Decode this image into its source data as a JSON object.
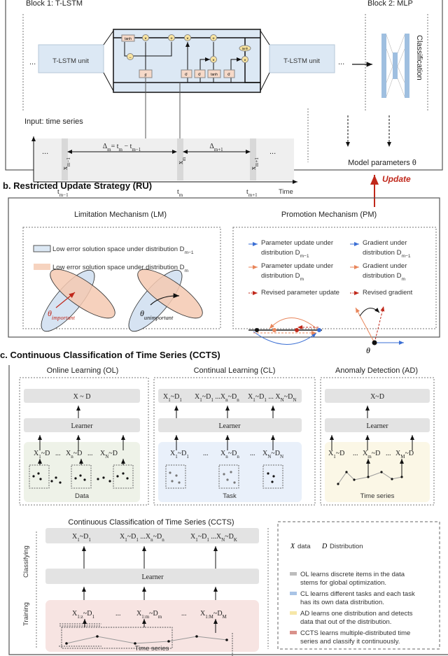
{
  "section_a": {
    "block1_title": "Block 1: T-LSTM",
    "block2_title": "Block 2: MLP",
    "unit_label_left": "T-LSTM unit",
    "unit_label_right": "T-LSTM unit",
    "ellipsis": "...",
    "classification": "Classification",
    "gates": {
      "tanh": "tanh",
      "sigma": "σ",
      "g": "g",
      "times": "×",
      "plus": "+",
      "minus": "−"
    },
    "input_title": "Input: time series",
    "delta_m": "Δ_{m}= t_{m} − t_{m−1}",
    "delta_m1": "Δ_{m+1}",
    "x_prev": "x_{m−1}",
    "x_cur": "x_{m}",
    "x_next": "x_{m+1}",
    "t_prev": "t_{m−1}",
    "t_cur": "t_{m}",
    "t_next": "t_{m+1}",
    "time_axis": "Time",
    "model_params": "Model parameters θ",
    "update": "Update"
  },
  "section_b": {
    "title": "b. Restricted Update Strategy (RU)",
    "lm_title": "Limitation Mechanism (LM)",
    "pm_title": "Promotion Mechanism (PM)",
    "lm_legend": [
      "Low error solution space under distribution D_{m−1}",
      "Low error solution space under distribution D_{m}"
    ],
    "theta_important": "θ_{important}",
    "theta_unimportant": "θ_{unimportant}",
    "pm_legend": [
      {
        "line1": "Parameter update under",
        "line2": "distribution D_{m−1}",
        "color": "#3b6fd4"
      },
      {
        "line1": "Parameter update under",
        "line2": "distribution D_{m}",
        "color": "#e8855a"
      },
      {
        "line1": "Revised parameter update",
        "line2": "",
        "color": "#c0281b"
      },
      {
        "line1": "Gradient under",
        "line2": "distribution D_{m−1}",
        "color": "#3b6fd4"
      },
      {
        "line1": "Gradient under",
        "line2": "distribution D_{m}",
        "color": "#e8855a"
      },
      {
        "line1": "Revised gradient",
        "line2": "",
        "color": "#c0281b"
      }
    ],
    "theta": "θ"
  },
  "section_c": {
    "title": "c. Continuous Classification of Time Series (CCTS)",
    "ol": {
      "title": "Online Learning (OL)",
      "output": "X ~ D",
      "learner": "Learner",
      "inputs": [
        "X_{1}~D",
        "...",
        "X_{n}~D",
        "...",
        "X_{N}~D"
      ],
      "footer": "Data"
    },
    "cl": {
      "title": "Continual Learning (CL)",
      "outputs": [
        "X_{1}~D_{1}",
        "X_{1}~D_{1} ...X_{n}~D_{n}",
        "X_{1}~D_{1} ... X_{N}~D_{N}"
      ],
      "learner": "Learner",
      "inputs": [
        "X_{1}~D_{1}",
        "...",
        "X_{n}~D_{n}",
        "...",
        "X_{N}~D_{N}"
      ],
      "footer": "Task"
    },
    "ad": {
      "title": "Anomaly Detection (AD)",
      "output": "X~D",
      "learner": "Learner",
      "inputs": [
        "X_{1}~D",
        "...",
        "X_{m}~D",
        "...",
        "X_{M}~D"
      ],
      "footer": "Time series"
    },
    "ccts": {
      "title": "Continuous Classification of Time Series (CCTS)",
      "classifying": "Classifying",
      "training": "Training",
      "outputs": [
        "X_{1}~D_{1}",
        "X_{1}~D_{1} ...X_{n}~D_{n}",
        "X_{1}~D_{1} ...X_{N}~D_{K}"
      ],
      "learner": "Learner",
      "inputs": [
        "X_{1:z}~D_{1}",
        "...",
        "X_{1:m}~D_{m}",
        "...",
        "X_{1:M}~D_{M}"
      ],
      "footer": "Time series"
    },
    "legend": {
      "x_label": "X",
      "x_text": "data",
      "d_label": "D",
      "d_text": "Distribution",
      "items": [
        {
          "line1": "OL learns discrete items in the data",
          "line2": "stems for global optimization.",
          "color": "#bdbdbd"
        },
        {
          "line1": "CL learns different tasks and each task",
          "line2": "has its own data distribution.",
          "color": "#a9c4e6"
        },
        {
          "line1": "AD learns one distribution and detects",
          "line2": "data that out of the distribution.",
          "color": "#f6e7a8"
        },
        {
          "line1": "CCTS learns multiple-distributed time",
          "line2": "series and classify it continuously.",
          "color": "#d9918a"
        }
      ]
    }
  },
  "colors": {
    "update_red": "#c0281b",
    "lstm_blue": "#dce8f4",
    "gate_fill": "#f6d9c8",
    "mult_fill": "#fbe6a2",
    "ol_bg": "#eef2e8",
    "cl_bg": "#e9f0fa",
    "ad_bg": "#fbf7e6",
    "ccts_bg": "#f7e4e2",
    "bar_gray": "#e3e3e3"
  }
}
